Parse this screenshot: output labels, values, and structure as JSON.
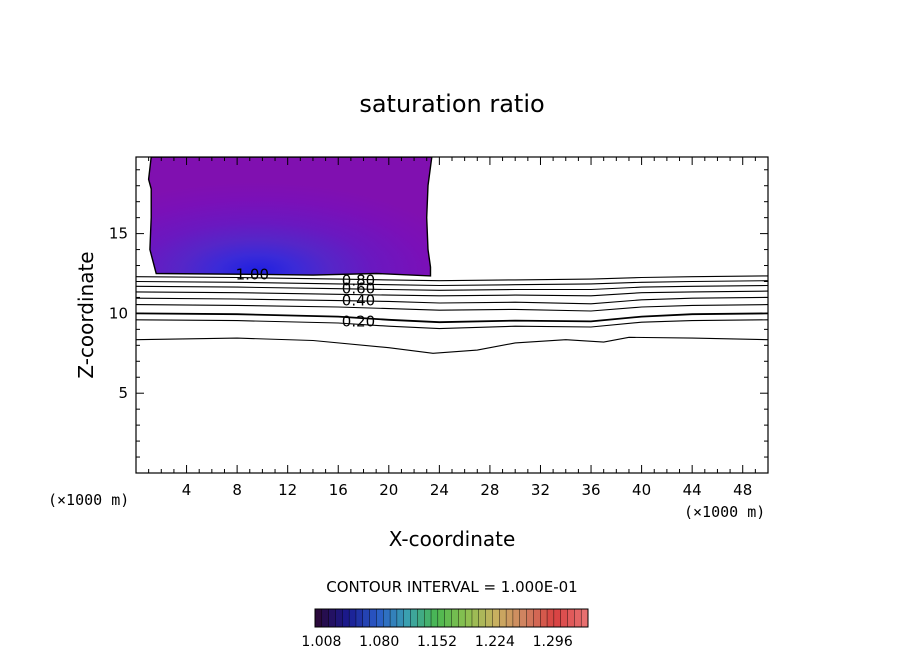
{
  "chart_data": {
    "type": "contour",
    "title": "saturation ratio",
    "xlabel": "X-coordinate",
    "ylabel": "Z-coordinate",
    "x_unit_label_left": "(×1000 m)",
    "x_unit_label_right": "(×1000 m)",
    "xlim": [
      0,
      50
    ],
    "ylim": [
      0,
      19.8
    ],
    "x_ticks": [
      4,
      8,
      12,
      16,
      20,
      24,
      28,
      32,
      36,
      40,
      44,
      48
    ],
    "x_tick_labels": [
      "4",
      "8",
      "12",
      "16",
      "20",
      "24",
      "28",
      "32",
      "36",
      "40",
      "44",
      "48"
    ],
    "y_ticks": [
      5,
      10,
      15
    ],
    "y_tick_labels": [
      "5",
      "10",
      "15"
    ],
    "contour_interval_label": "CONTOUR INTERVAL = 1.000E-01",
    "contour_labels": [
      {
        "text": "1.00",
        "x": 9.2,
        "z": 12.45
      },
      {
        "text": "0.80",
        "x": 17.6,
        "z": 12.05
      },
      {
        "text": "0.60",
        "x": 17.6,
        "z": 11.55
      },
      {
        "text": "0.40",
        "x": 17.6,
        "z": 10.8
      },
      {
        "text": "0.20",
        "x": 17.6,
        "z": 9.5
      }
    ],
    "contour_lines": [
      {
        "level": 0.9,
        "points": [
          [
            0,
            12.3
          ],
          [
            8,
            12.25
          ],
          [
            16,
            12.15
          ],
          [
            20,
            12.1
          ],
          [
            24,
            12.05
          ],
          [
            30,
            12.1
          ],
          [
            36,
            12.15
          ],
          [
            40,
            12.25
          ],
          [
            44,
            12.3
          ],
          [
            50,
            12.35
          ]
        ]
      },
      {
        "level": 0.8,
        "points": [
          [
            0,
            12.0
          ],
          [
            8,
            11.95
          ],
          [
            16,
            11.85
          ],
          [
            20,
            11.8
          ],
          [
            24,
            11.75
          ],
          [
            30,
            11.8
          ],
          [
            36,
            11.85
          ],
          [
            40,
            11.95
          ],
          [
            44,
            12.0
          ],
          [
            50,
            12.05
          ]
        ]
      },
      {
        "level": 0.7,
        "points": [
          [
            0,
            11.7
          ],
          [
            8,
            11.65
          ],
          [
            16,
            11.55
          ],
          [
            20,
            11.5
          ],
          [
            24,
            11.45
          ],
          [
            30,
            11.5
          ],
          [
            36,
            11.5
          ],
          [
            40,
            11.65
          ],
          [
            44,
            11.7
          ],
          [
            50,
            11.75
          ]
        ]
      },
      {
        "level": 0.6,
        "points": [
          [
            0,
            11.35
          ],
          [
            8,
            11.3
          ],
          [
            16,
            11.2
          ],
          [
            20,
            11.15
          ],
          [
            24,
            11.1
          ],
          [
            30,
            11.15
          ],
          [
            36,
            11.1
          ],
          [
            40,
            11.3
          ],
          [
            44,
            11.35
          ],
          [
            50,
            11.4
          ]
        ]
      },
      {
        "level": 0.5,
        "points": [
          [
            0,
            10.95
          ],
          [
            8,
            10.9
          ],
          [
            16,
            10.8
          ],
          [
            20,
            10.75
          ],
          [
            24,
            10.65
          ],
          [
            30,
            10.7
          ],
          [
            36,
            10.6
          ],
          [
            40,
            10.85
          ],
          [
            44,
            10.95
          ],
          [
            50,
            11.0
          ]
        ]
      },
      {
        "level": 0.4,
        "points": [
          [
            0,
            10.55
          ],
          [
            8,
            10.5
          ],
          [
            16,
            10.4
          ],
          [
            20,
            10.3
          ],
          [
            24,
            10.2
          ],
          [
            30,
            10.25
          ],
          [
            36,
            10.15
          ],
          [
            40,
            10.4
          ],
          [
            44,
            10.5
          ],
          [
            50,
            10.55
          ]
        ]
      },
      {
        "level": 0.3,
        "points": [
          [
            0,
            10.0
          ],
          [
            8,
            9.95
          ],
          [
            16,
            9.8
          ],
          [
            20,
            9.6
          ],
          [
            24,
            9.45
          ],
          [
            30,
            9.55
          ],
          [
            36,
            9.5
          ],
          [
            40,
            9.8
          ],
          [
            44,
            9.95
          ],
          [
            50,
            10.0
          ]
        ]
      },
      {
        "level": 0.2,
        "points": [
          [
            0,
            9.6
          ],
          [
            8,
            9.55
          ],
          [
            16,
            9.4
          ],
          [
            20,
            9.2
          ],
          [
            24,
            9.05
          ],
          [
            30,
            9.2
          ],
          [
            36,
            9.15
          ],
          [
            40,
            9.45
          ],
          [
            44,
            9.55
          ],
          [
            50,
            9.6
          ]
        ]
      },
      {
        "level": 0.1,
        "points": [
          [
            0,
            8.35
          ],
          [
            8,
            8.45
          ],
          [
            14,
            8.3
          ],
          [
            20,
            7.85
          ],
          [
            23.5,
            7.5
          ],
          [
            27,
            7.7
          ],
          [
            30,
            8.15
          ],
          [
            34,
            8.35
          ],
          [
            37,
            8.2
          ],
          [
            39,
            8.5
          ],
          [
            44,
            8.45
          ],
          [
            50,
            8.35
          ]
        ]
      }
    ],
    "shaded_region": {
      "description_levels": [
        1.0,
        1.3
      ],
      "outline": [
        [
          1.2,
          19.8
        ],
        [
          23.4,
          19.8
        ],
        [
          23.1,
          18.0
        ],
        [
          23.0,
          16.0
        ],
        [
          23.1,
          14.0
        ],
        [
          23.3,
          12.9
        ],
        [
          23.3,
          12.35
        ],
        [
          19,
          12.5
        ],
        [
          14,
          12.4
        ],
        [
          9,
          12.45
        ],
        [
          1.6,
          12.5
        ],
        [
          1.1,
          14.0
        ],
        [
          1.2,
          16.0
        ],
        [
          1.2,
          17.8
        ],
        [
          1.0,
          18.4
        ],
        [
          1.2,
          19.8
        ]
      ]
    },
    "colorbar": {
      "min": 1.0,
      "max": 1.34,
      "tick_values": [
        1.008,
        1.08,
        1.152,
        1.224,
        1.296
      ],
      "tick_labels": [
        "1.008",
        "1.080",
        "1.152",
        "1.224",
        "1.296"
      ],
      "colors": [
        "#2a0a3c",
        "#1a1a90",
        "#2a5cc8",
        "#3aa0b0",
        "#4ab850",
        "#8cc050",
        "#c8b060",
        "#d08060",
        "#d84040",
        "#e87070"
      ]
    }
  }
}
